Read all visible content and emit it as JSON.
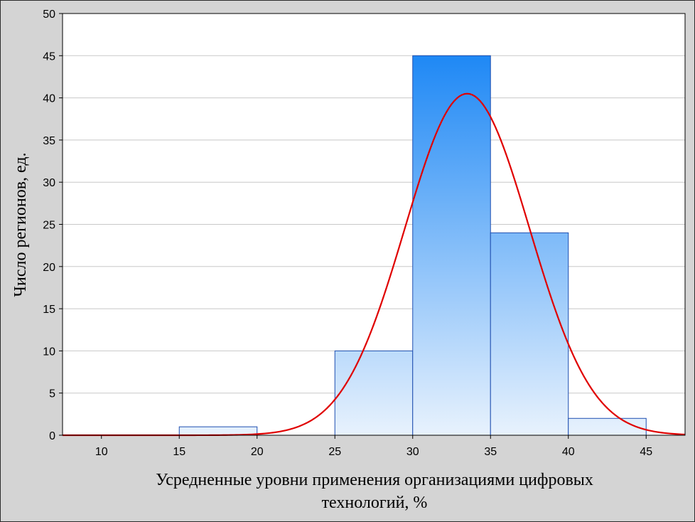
{
  "chart_data": {
    "type": "bar",
    "subtype": "histogram-with-normal-curve",
    "title": "",
    "xlabel_lines": [
      "Усредненные уровни применения организациями цифровых",
      "технологий, %"
    ],
    "ylabel": "Число регионов, ед.",
    "xlim": [
      7.5,
      47.5
    ],
    "ylim": [
      0,
      50
    ],
    "x_ticks": [
      10,
      15,
      20,
      25,
      30,
      35,
      40,
      45
    ],
    "y_ticks": [
      0,
      5,
      10,
      15,
      20,
      25,
      30,
      35,
      40,
      45,
      50
    ],
    "grid": "horizontal",
    "bins": [
      {
        "x0": 15,
        "x1": 20,
        "count": 1
      },
      {
        "x0": 20,
        "x1": 25,
        "count": 0
      },
      {
        "x0": 25,
        "x1": 30,
        "count": 10
      },
      {
        "x0": 30,
        "x1": 35,
        "count": 45
      },
      {
        "x0": 35,
        "x1": 40,
        "count": 24
      },
      {
        "x0": 40,
        "x1": 45,
        "count": 2
      }
    ],
    "normal_curve": {
      "mean": 33.5,
      "sd": 4.0,
      "peak": 40.5
    },
    "colors": {
      "bar_top": "#1e88f5",
      "bar_bottom": "#e8f2fd",
      "bar_edge": "#1f4fb0",
      "curve": "#e00000",
      "grid": "#c8c8c8",
      "plot_bg": "#ffffff",
      "page_bg": "#d4d4d4"
    }
  }
}
